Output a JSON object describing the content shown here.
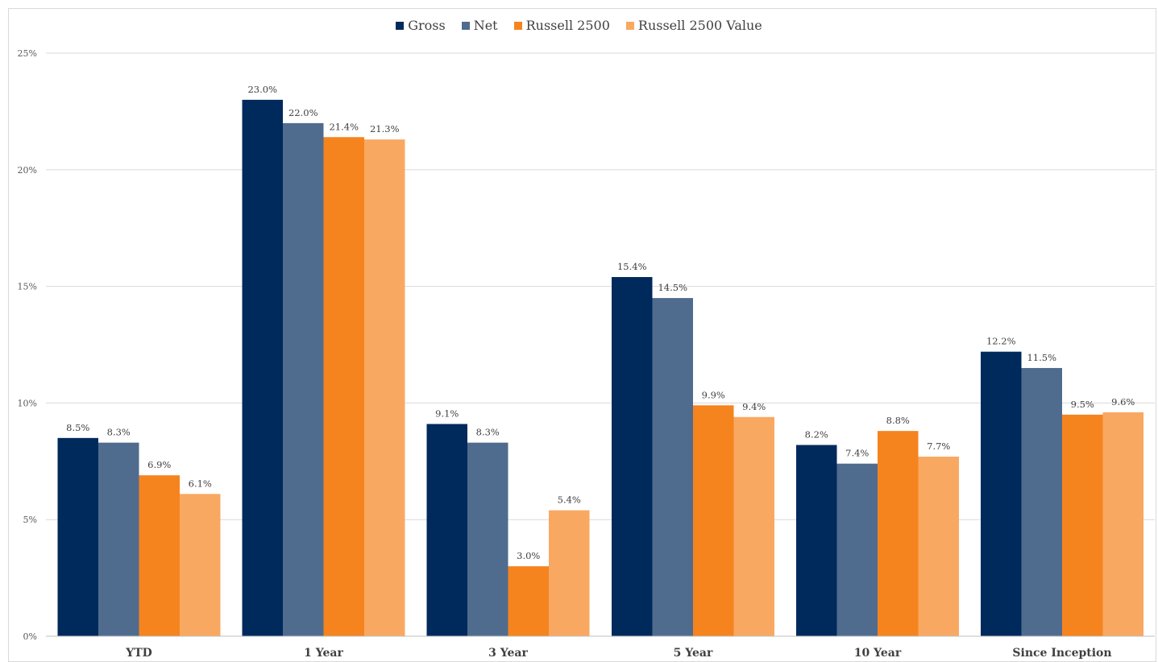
{
  "chart_data": {
    "type": "bar",
    "categories": [
      "YTD",
      "1 Year",
      "3 Year",
      "5 Year",
      "10 Year",
      "Since Inception"
    ],
    "series": [
      {
        "name": "Gross",
        "color": "#002a5c",
        "values": [
          8.5,
          23.0,
          9.1,
          15.4,
          8.2,
          12.2
        ]
      },
      {
        "name": "Net",
        "color": "#4f6c8e",
        "values": [
          8.3,
          22.0,
          8.3,
          14.5,
          7.4,
          11.5
        ]
      },
      {
        "name": "Russell 2500",
        "color": "#f5841f",
        "values": [
          6.9,
          21.4,
          3.0,
          9.9,
          8.8,
          9.5
        ]
      },
      {
        "name": "Russell 2500 Value",
        "color": "#f9a862",
        "values": [
          6.1,
          21.3,
          5.4,
          9.4,
          7.7,
          9.6
        ]
      }
    ],
    "data_labels": [
      [
        "8.5%",
        "23.0%",
        "9.1%",
        "15.4%",
        "8.2%",
        "12.2%"
      ],
      [
        "8.3%",
        "22.0%",
        "8.3%",
        "14.5%",
        "7.4%",
        "11.5%"
      ],
      [
        "6.9%",
        "21.4%",
        "3.0%",
        "9.9%",
        "8.8%",
        "9.5%"
      ],
      [
        "6.1%",
        "21.3%",
        "5.4%",
        "9.4%",
        "7.7%",
        "9.6%"
      ]
    ],
    "yticks": [
      0,
      5,
      10,
      15,
      20,
      25
    ],
    "ytick_labels": [
      "0%",
      "5%",
      "10%",
      "15%",
      "20%",
      "25%"
    ],
    "ylim": [
      0,
      25
    ],
    "grid": true,
    "legend_position": "top-center",
    "title": "",
    "xlabel": "",
    "ylabel": ""
  }
}
